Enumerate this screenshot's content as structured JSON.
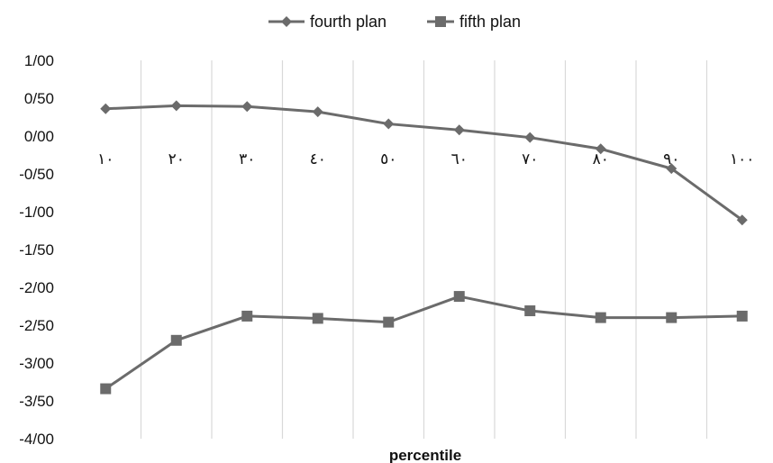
{
  "chart_data": {
    "type": "line",
    "title": "",
    "xlabel": "percentile",
    "ylabel": "",
    "categories": [
      "١٠",
      "٢٠",
      "٣٠",
      "٤٠",
      "٥٠",
      "٦٠",
      "٧٠",
      "٨٠",
      "٩٠",
      "١٠٠"
    ],
    "y_ticks": [
      "1/00",
      "0/50",
      "0/00",
      "-0/50",
      "-1/00",
      "-1/50",
      "-2/00",
      "-2/50",
      "-3/00",
      "-3/50",
      "-4/00"
    ],
    "ylim": [
      -4,
      1
    ],
    "grid": "vertical",
    "legend": "top-center",
    "series": [
      {
        "name": "fourth plan",
        "marker": "diamond",
        "color": "#6b6b6b",
        "values": [
          0.36,
          0.4,
          0.39,
          0.32,
          0.16,
          0.08,
          -0.02,
          -0.17,
          -0.43,
          -1.11
        ]
      },
      {
        "name": "fifth plan",
        "marker": "square",
        "color": "#6b6b6b",
        "values": [
          -3.34,
          -2.7,
          -2.38,
          -2.41,
          -2.46,
          -2.12,
          -2.31,
          -2.4,
          -2.4,
          -2.38
        ]
      }
    ]
  }
}
